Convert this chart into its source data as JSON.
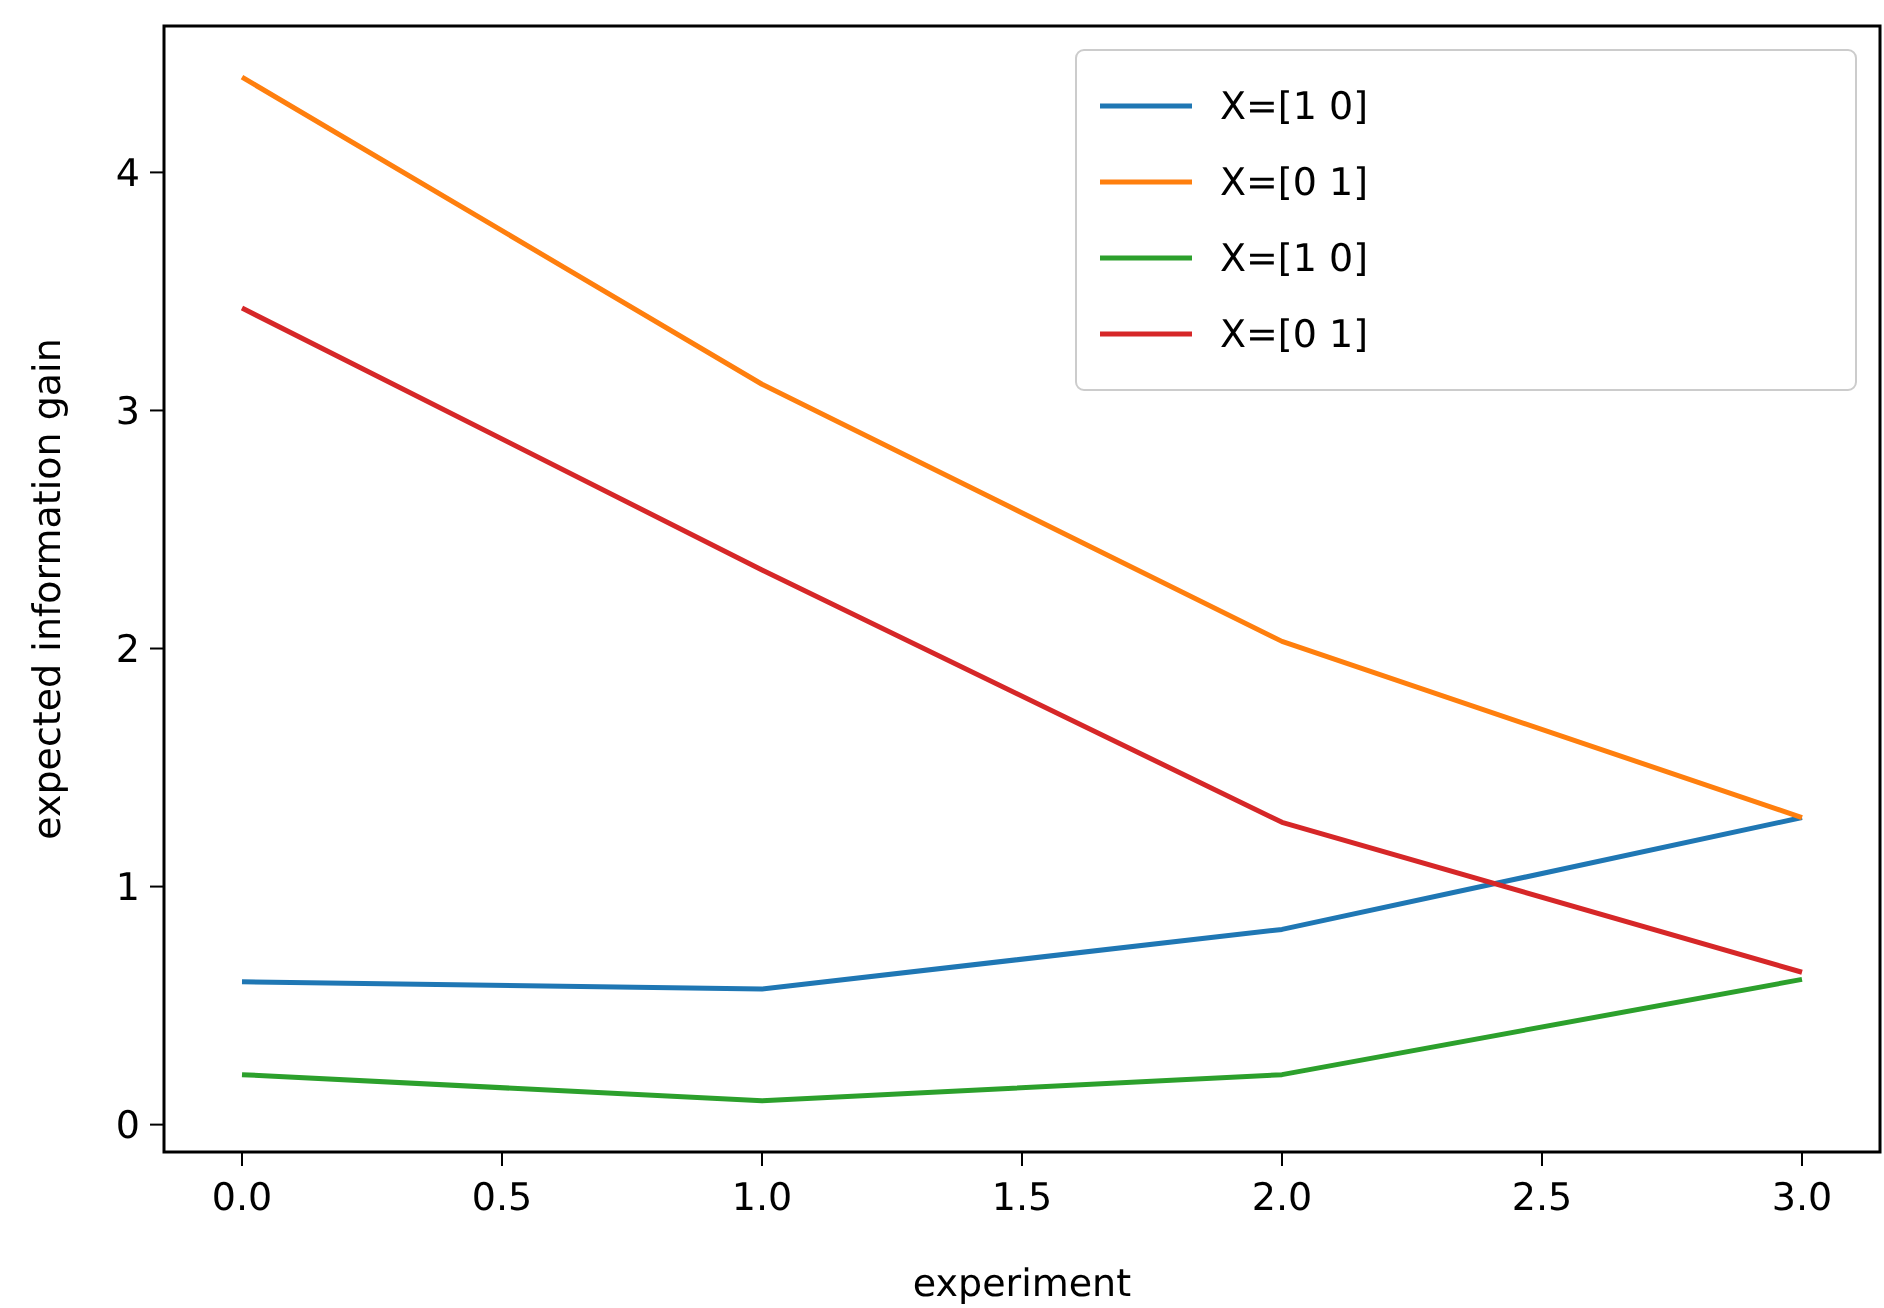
{
  "chart_data": {
    "type": "line",
    "xlabel": "experiment",
    "ylabel": "expected information gain",
    "x": [
      0,
      1,
      2,
      3
    ],
    "series": [
      {
        "name": "X=[1 0]",
        "color": "#1f77b4",
        "values": [
          0.6,
          0.57,
          0.82,
          1.29
        ]
      },
      {
        "name": "X=[0 1]",
        "color": "#ff7f0e",
        "values": [
          4.4,
          3.11,
          2.03,
          1.29
        ]
      },
      {
        "name": "X=[1 0]",
        "color": "#2ca02c",
        "values": [
          0.21,
          0.1,
          0.21,
          0.61
        ]
      },
      {
        "name": "X=[0 1]",
        "color": "#d62728",
        "values": [
          3.43,
          2.33,
          1.27,
          0.64
        ]
      }
    ],
    "xlim": [
      -0.15,
      3.15
    ],
    "xticks": [
      {
        "value": 0,
        "label": "0.0"
      },
      {
        "value": 0.5,
        "label": "0.5"
      },
      {
        "value": 1,
        "label": "1.0"
      },
      {
        "value": 1.5,
        "label": "1.5"
      },
      {
        "value": 2,
        "label": "2.0"
      },
      {
        "value": 2.5,
        "label": "2.5"
      },
      {
        "value": 3,
        "label": "3.0"
      }
    ],
    "ylim": [
      -0.115,
      4.615
    ],
    "yticks": [
      0,
      1,
      2,
      3,
      4
    ],
    "legend": "top right",
    "grid": false,
    "marker": "none",
    "line_style": "solid"
  }
}
